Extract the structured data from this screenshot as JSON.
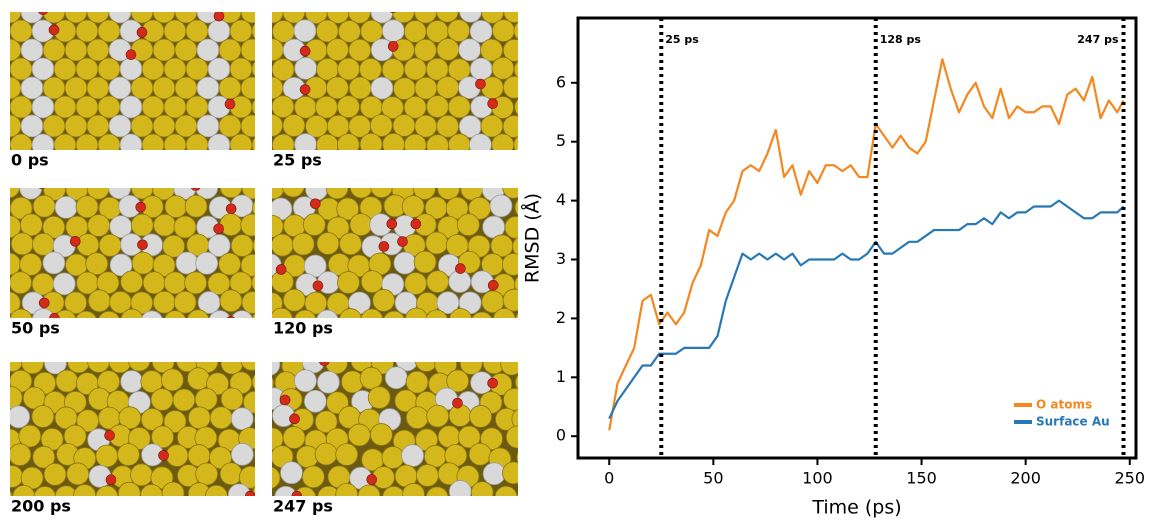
{
  "snapshots": {
    "labels": [
      "0 ps",
      "25 ps",
      "50 ps",
      "120 ps",
      "200 ps",
      "247 ps"
    ]
  },
  "chart_data": {
    "type": "line",
    "xlabel": "Time (ps)",
    "ylabel": "RMSD (Å)",
    "x": [
      0,
      4,
      8,
      12,
      16,
      20,
      24,
      28,
      32,
      36,
      40,
      44,
      48,
      52,
      56,
      60,
      64,
      68,
      72,
      76,
      80,
      84,
      88,
      92,
      96,
      100,
      104,
      108,
      112,
      116,
      120,
      124,
      128,
      132,
      136,
      140,
      144,
      148,
      152,
      156,
      160,
      164,
      168,
      172,
      176,
      180,
      184,
      188,
      192,
      196,
      200,
      204,
      208,
      212,
      216,
      220,
      224,
      228,
      232,
      236,
      240,
      244,
      247
    ],
    "series": [
      {
        "name": "O atoms",
        "color": "#f5871f",
        "values": [
          0.1,
          0.9,
          1.2,
          1.5,
          2.3,
          2.4,
          1.9,
          2.1,
          1.9,
          2.1,
          2.6,
          2.9,
          3.5,
          3.4,
          3.8,
          4.0,
          4.5,
          4.6,
          4.5,
          4.8,
          5.2,
          4.4,
          4.6,
          4.1,
          4.5,
          4.3,
          4.6,
          4.6,
          4.5,
          4.6,
          4.4,
          4.4,
          5.3,
          5.1,
          4.9,
          5.1,
          4.9,
          4.8,
          5.0,
          5.7,
          6.4,
          5.9,
          5.5,
          5.8,
          6.0,
          5.6,
          5.4,
          5.9,
          5.4,
          5.6,
          5.5,
          5.5,
          5.6,
          5.6,
          5.3,
          5.8,
          5.9,
          5.7,
          6.1,
          5.4,
          5.7,
          5.5,
          5.7
        ]
      },
      {
        "name": "Surface Au",
        "color": "#2878b5",
        "values": [
          0.3,
          0.6,
          0.8,
          1.0,
          1.2,
          1.2,
          1.4,
          1.4,
          1.4,
          1.5,
          1.5,
          1.5,
          1.5,
          1.7,
          2.3,
          2.7,
          3.1,
          3.0,
          3.1,
          3.0,
          3.1,
          3.0,
          3.1,
          2.9,
          3.0,
          3.0,
          3.0,
          3.0,
          3.1,
          3.0,
          3.0,
          3.1,
          3.3,
          3.1,
          3.1,
          3.2,
          3.3,
          3.3,
          3.4,
          3.5,
          3.5,
          3.5,
          3.5,
          3.6,
          3.6,
          3.7,
          3.6,
          3.8,
          3.7,
          3.8,
          3.8,
          3.9,
          3.9,
          3.9,
          4.0,
          3.9,
          3.8,
          3.7,
          3.7,
          3.8,
          3.8,
          3.8,
          3.9
        ]
      }
    ],
    "xlim": [
      -15,
      253
    ],
    "ylim": [
      -0.37,
      7.1
    ],
    "xticks": [
      0,
      50,
      100,
      150,
      200,
      250
    ],
    "yticks": [
      0,
      1,
      2,
      3,
      4,
      5,
      6
    ],
    "annotations": [
      {
        "x": 25,
        "label": "25 ps"
      },
      {
        "x": 128,
        "label": "128 ps"
      },
      {
        "x": 247,
        "label": "247 ps"
      }
    ],
    "legend": "lower right"
  }
}
